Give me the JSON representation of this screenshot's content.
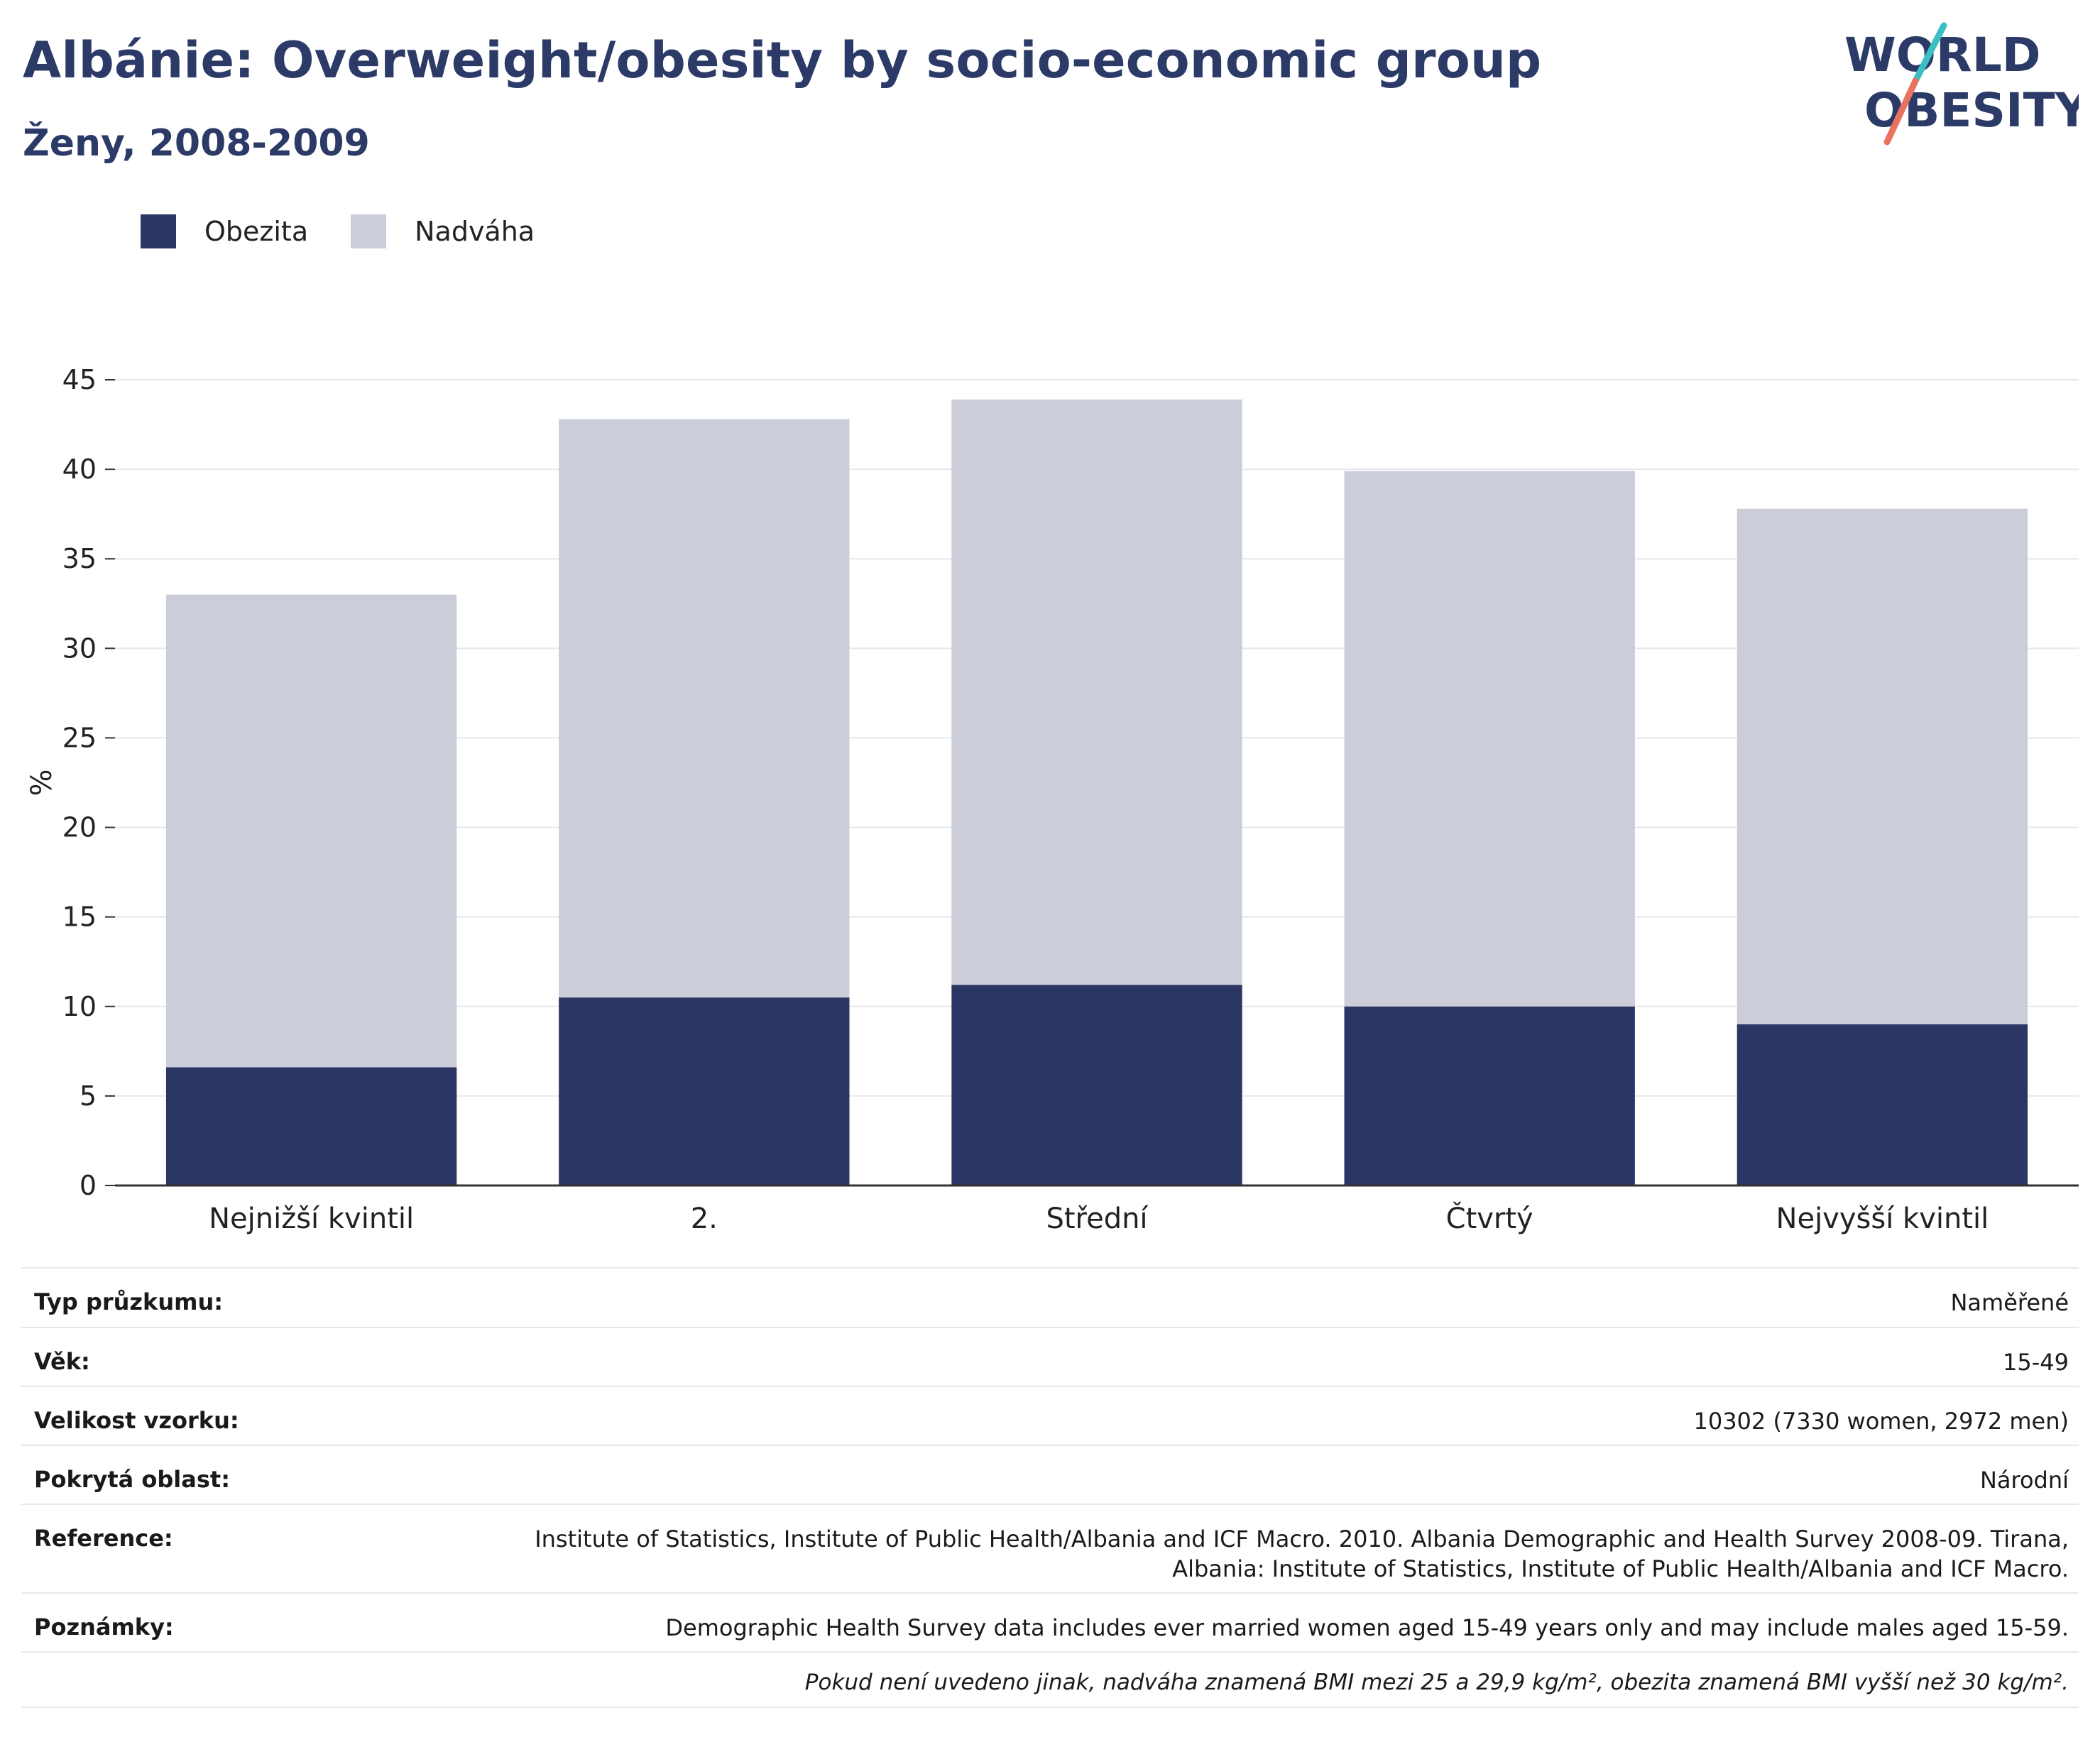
{
  "header": {
    "title": "Albánie: Overweight/obesity by socio-economic group",
    "subtitle": "Ženy, 2008-2009"
  },
  "logo": {
    "line1": "WORLD",
    "line2": "OBESITY"
  },
  "colors": {
    "obesity": "#2b3664",
    "overweight": "#cbcdd9",
    "title": "#2b3a67",
    "logo_teal": "#3bbfc2",
    "logo_coral": "#e8735f"
  },
  "chart_data": {
    "type": "bar",
    "stacked": true,
    "categories": [
      "Nejnižší kvintil",
      "2.",
      "Střední",
      "Čtvrtý",
      "Nejvyšší kvintil"
    ],
    "series": [
      {
        "name": "Obezita",
        "values": [
          6.6,
          10.5,
          11.2,
          10.0,
          9.0
        ]
      },
      {
        "name": "Nadváha",
        "values": [
          26.4,
          32.3,
          32.7,
          29.9,
          28.8
        ]
      }
    ],
    "ylabel": "%",
    "ylim": [
      0,
      45
    ],
    "yticks": [
      0,
      5,
      10,
      15,
      20,
      25,
      30,
      35,
      40,
      45
    ],
    "grid": true,
    "legend_position": "top-left"
  },
  "meta": {
    "rows": [
      {
        "key": "Typ průzkumu:",
        "value": "Naměřené"
      },
      {
        "key": "Věk:",
        "value": "15-49"
      },
      {
        "key": "Velikost vzorku:",
        "value": "10302 (7330 women, 2972 men)"
      },
      {
        "key": "Pokrytá oblast:",
        "value": "Národní"
      },
      {
        "key": "Reference:",
        "value_line1": "Institute of Statistics, Institute of Public Health/Albania and ICF Macro. 2010. Albania Demographic and Health Survey 2008-09. Tirana,",
        "value_line2": "Albania: Institute of Statistics, Institute of Public Health/Albania and ICF Macro."
      },
      {
        "key": "Poznámky:",
        "value": "Demographic Health Survey data includes ever married women aged 15-49 years only and may include males aged 15-59."
      }
    ],
    "footnote": "Pokud není uvedeno jinak, nadváha znamená BMI mezi 25 a 29,9 kg/m², obezita znamená BMI vyšší než 30 kg/m²."
  }
}
